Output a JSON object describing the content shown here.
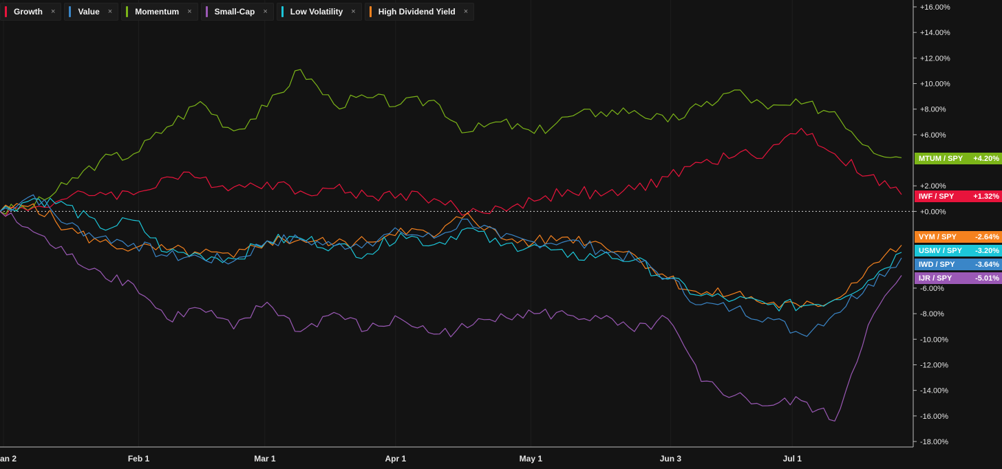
{
  "legend": [
    {
      "label": "Growth",
      "color": "#e8143c"
    },
    {
      "label": "Value",
      "color": "#3a86c8"
    },
    {
      "label": "Momentum",
      "color": "#7cb518"
    },
    {
      "label": "Small-Cap",
      "color": "#9b59b6"
    },
    {
      "label": "Low Volatility",
      "color": "#1cc6d9"
    },
    {
      "label": "High Dividend Yield",
      "color": "#f5821f"
    }
  ],
  "close_glyph": "×",
  "chart_data": {
    "type": "line",
    "x_tick_labels": [
      "an 2",
      "Feb 1",
      "Mar 1",
      "Apr 1",
      "May 1",
      "Jun 3",
      "Jul 1"
    ],
    "y_tick_labels": [
      "+16.00%",
      "+14.00%",
      "+12.00%",
      "+10.00%",
      "+8.00%",
      "+6.00%",
      "+2.00%",
      "+0.00%",
      "-6.00%",
      "-8.00%",
      "-10.00%",
      "-12.00%",
      "-14.00%",
      "-16.00%",
      "-18.00%"
    ],
    "y_ticks": [
      16,
      14,
      12,
      10,
      8,
      6,
      2,
      0,
      -6,
      -8,
      -10,
      -12,
      -14,
      -16,
      -18
    ],
    "ylim": [
      -18.6,
      16.8
    ],
    "x": [
      "Jan 2",
      "Jan 8",
      "Jan 15",
      "Jan 22",
      "Feb 1",
      "Feb 8",
      "Feb 15",
      "Feb 22",
      "Mar 1",
      "Mar 8",
      "Mar 15",
      "Mar 22",
      "Apr 1",
      "Apr 8",
      "Apr 15",
      "Apr 22",
      "May 1",
      "May 8",
      "May 15",
      "May 22",
      "Jun 3",
      "Jun 10",
      "Jun 17",
      "Jun 24",
      "Jul 1",
      "Jul 8",
      "Jul 15",
      "Jul 19"
    ],
    "series": [
      {
        "color": "#7cb518",
        "badge": "MTUM / SPY",
        "badge_value": "+4.20%",
        "values": [
          0,
          0.4,
          2.1,
          4.0,
          4.5,
          6.6,
          8.6,
          6.3,
          8.2,
          11.1,
          8.4,
          8.9,
          8.4,
          8.7,
          6.2,
          7.0,
          6.1,
          7.4,
          7.8,
          7.9,
          7.0,
          8.2,
          9.5,
          8.0,
          8.4,
          7.8,
          5.1,
          4.2
        ]
      },
      {
        "color": "#e8143c",
        "badge": "IWF / SPY",
        "badge_value": "+1.32%",
        "values": [
          0,
          0.3,
          1.0,
          1.5,
          1.3,
          2.7,
          2.6,
          1.9,
          2.3,
          1.6,
          1.8,
          1.2,
          1.4,
          1.0,
          -0.2,
          0.3,
          0.8,
          1.7,
          1.2,
          1.7,
          2.7,
          3.8,
          4.3,
          4.7,
          6.5,
          4.5,
          2.8,
          1.32
        ]
      },
      {
        "color": "#f5821f",
        "badge": "VYM / SPY",
        "badge_value": "-2.64%",
        "values": [
          0,
          0.6,
          -1.4,
          -2.4,
          -2.9,
          -3.0,
          -3.3,
          -3.6,
          -2.3,
          -2.2,
          -2.5,
          -2.4,
          -1.3,
          -2.0,
          -0.1,
          -2.1,
          -2.4,
          -2.0,
          -2.5,
          -3.4,
          -5.2,
          -6.5,
          -6.4,
          -7.2,
          -7.5,
          -6.9,
          -4.4,
          -2.64
        ]
      },
      {
        "color": "#1cc6d9",
        "badge": "USMV / SPY",
        "badge_value": "-3.20%",
        "values": [
          0,
          1.0,
          0.5,
          -1.3,
          -0.7,
          -3.2,
          -3.4,
          -3.7,
          -2.3,
          -2.1,
          -2.7,
          -3.3,
          -1.7,
          -2.6,
          -1.3,
          -2.7,
          -2.6,
          -3.6,
          -3.4,
          -3.8,
          -5.3,
          -6.6,
          -6.9,
          -7.3,
          -7.4,
          -6.9,
          -5.4,
          -3.2
        ]
      },
      {
        "color": "#3a86c8",
        "badge": "IWD / SPY",
        "badge_value": "-3.64%",
        "values": [
          0,
          1.3,
          -1.0,
          -2.0,
          -2.5,
          -3.5,
          -3.6,
          -3.9,
          -2.3,
          -2.2,
          -2.7,
          -2.4,
          -1.6,
          -2.1,
          -0.6,
          -2.1,
          -2.4,
          -2.3,
          -3.0,
          -3.7,
          -5.2,
          -7.3,
          -7.6,
          -8.3,
          -9.6,
          -8.0,
          -5.7,
          -3.64
        ]
      },
      {
        "color": "#9b59b6",
        "badge": "IJR / SPY",
        "badge_value": "-5.01%",
        "values": [
          0,
          -1.6,
          -3.4,
          -4.7,
          -5.7,
          -8.4,
          -7.6,
          -9.2,
          -7.1,
          -9.4,
          -7.9,
          -9.3,
          -8.4,
          -9.6,
          -9.1,
          -8.0,
          -8.0,
          -8.1,
          -8.4,
          -9.4,
          -8.4,
          -13.3,
          -14.4,
          -15.2,
          -14.8,
          -16.4,
          -8.9,
          -5.01
        ]
      }
    ]
  }
}
